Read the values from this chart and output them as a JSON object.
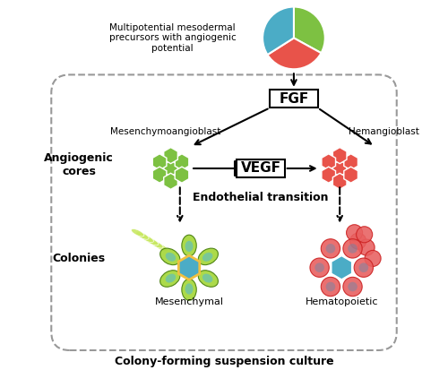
{
  "bg_color": "#ffffff",
  "title": "Colony-forming suspension culture",
  "fgf_label": "FGF",
  "vegf_label": "VEGF",
  "mesenchymo_label": "Mesenchymoangioblast",
  "hemangio_label": "Hemangioblast",
  "angiogenic_label": "Angiogenic\ncores",
  "colonies_label": "Colonies",
  "endothelial_label": "Endothelial transition",
  "mesenchymal_label": "Mesenchymal",
  "hematopoietic_label": "Hematopoietic",
  "multipotential_label": "Multipotential mesodermal\nprecursors with angiogenic\npotential",
  "pie_colors": [
    "#7dc142",
    "#e8534a",
    "#4bacc6"
  ],
  "pie_slices": [
    0.33,
    0.33,
    0.34
  ],
  "green_hex_color": "#7dc142",
  "blue_hex_color": "#4bacc6",
  "red_hex_color": "#e8534a",
  "yellow_hex_color": "#f0c040",
  "dash_box_color": "#999999"
}
